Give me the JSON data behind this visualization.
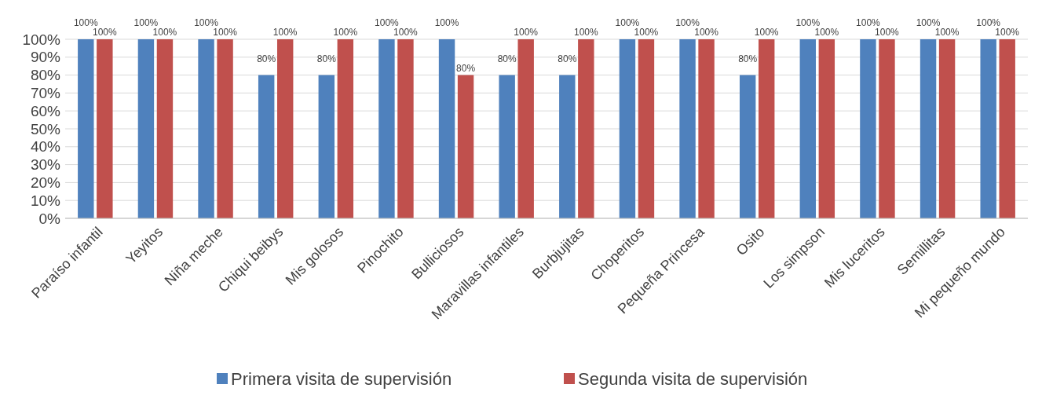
{
  "chart_data": {
    "type": "bar",
    "categories": [
      "Paraíso infantil",
      "Yeyitos",
      "Niña meche",
      "Chiqui beibys",
      "Mis golosos",
      "Pinochito",
      "Bulliciosos",
      "Maravillas infantiles",
      "Burbjujitas",
      "Choperitos",
      "Pequeña Princesa",
      "Osito",
      "Los simpson",
      "Mis luceritos",
      "Semillitas",
      "Mi pequeño mundo"
    ],
    "series": [
      {
        "name": "Primera visita de supervisión",
        "color": "#4f81bd",
        "values": [
          100,
          100,
          100,
          80,
          80,
          100,
          100,
          80,
          80,
          100,
          100,
          80,
          100,
          100,
          100,
          100
        ],
        "value_labels": [
          "100%",
          "100%",
          "100%",
          "80%",
          "80%",
          "100%",
          "100%",
          "80%",
          "80%",
          "100%",
          "100%",
          "80%",
          "100%",
          "100%",
          "100%",
          "100%"
        ]
      },
      {
        "name": "Segunda visita de supervisión",
        "color": "#c0504d",
        "values": [
          100,
          100,
          100,
          100,
          100,
          100,
          80,
          100,
          100,
          100,
          100,
          100,
          100,
          100,
          100,
          100
        ],
        "value_labels": [
          "100%",
          "100%",
          "100%",
          "100%",
          "100%",
          "100%",
          "80%",
          "100%",
          "100%",
          "100%",
          "100%",
          "100%",
          "100%",
          "100%",
          "100%",
          "100%"
        ]
      }
    ],
    "ylim": [
      0,
      100
    ],
    "yticks": [
      {
        "value": 0,
        "label": "0%"
      },
      {
        "value": 10,
        "label": "10%"
      },
      {
        "value": 20,
        "label": "20%"
      },
      {
        "value": 30,
        "label": "30%"
      },
      {
        "value": 40,
        "label": "40%"
      },
      {
        "value": 50,
        "label": "50%"
      },
      {
        "value": 60,
        "label": "60%"
      },
      {
        "value": 70,
        "label": "70%"
      },
      {
        "value": 80,
        "label": "80%"
      },
      {
        "value": 90,
        "label": "90%"
      },
      {
        "value": 100,
        "label": "100%"
      }
    ],
    "grid": "y",
    "legend": "bottom"
  }
}
